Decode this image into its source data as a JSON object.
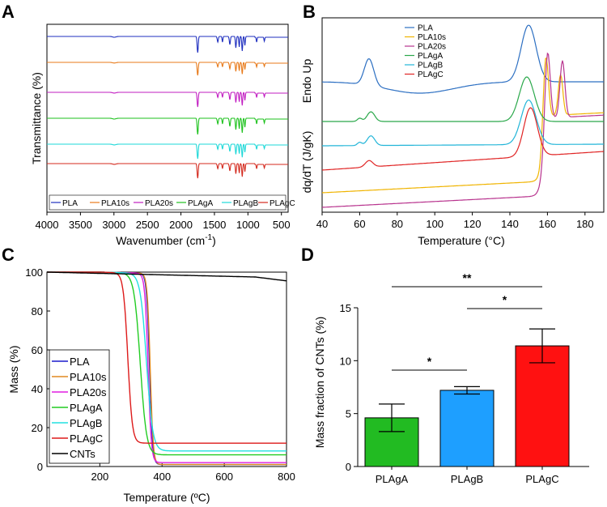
{
  "panels": {
    "A": {
      "letter": "A",
      "chart_data": {
        "type": "line",
        "title": "",
        "xlabel": "Wavenumber (cm-1)",
        "xlabel_main": "Wavenumber (cm",
        "xlabel_sup": "-1",
        "xlabel_close": ")",
        "ylabel": "Transmittance (%)",
        "xlim": [
          4000,
          400
        ],
        "xticks": [
          "4000",
          "3500",
          "3000",
          "2500",
          "2000",
          "1500",
          "1000",
          "500"
        ],
        "series": [
          {
            "name": "PLA",
            "color": "#1f2fbf"
          },
          {
            "name": "PLA10s",
            "color": "#e87a1a"
          },
          {
            "name": "PLA20s",
            "color": "#c21ec2"
          },
          {
            "name": "PLAgA",
            "color": "#1ec21e"
          },
          {
            "name": "PLAgB",
            "color": "#1ed8d8"
          },
          {
            "name": "PLAgC",
            "color": "#d42a1e"
          }
        ],
        "peaks_cm1": [
          2995,
          1750,
          1450,
          1380,
          1270,
          1180,
          1130,
          1085,
          1045,
          870,
          755
        ]
      }
    },
    "B": {
      "letter": "B",
      "chart_data": {
        "type": "line",
        "title": "",
        "xlabel": "Temperature (°C)",
        "ylabel": "dq/dT (J/gK)",
        "ylabel_extra": "Endo Up",
        "xlim": [
          40,
          190
        ],
        "xticks": [
          40,
          60,
          80,
          100,
          120,
          140,
          160,
          180
        ],
        "series": [
          {
            "name": "PLA",
            "color": "#2c6fc2",
            "peaks_C": [
              65,
              150
            ]
          },
          {
            "name": "PLA10s",
            "color": "#f0b400",
            "peaks_C": [
              159,
              167
            ]
          },
          {
            "name": "PLA20s",
            "color": "#b8338e",
            "peaks_C": [
              160,
              168
            ]
          },
          {
            "name": "PLAgA",
            "color": "#2aa84a",
            "peaks_C": [
              66,
              149
            ]
          },
          {
            "name": "PLAgB",
            "color": "#22b5d8",
            "peaks_C": [
              66,
              150
            ]
          },
          {
            "name": "PLAgC",
            "color": "#e02424",
            "peaks_C": [
              65,
              151
            ]
          }
        ]
      }
    },
    "C": {
      "letter": "C",
      "chart_data": {
        "type": "line",
        "title": "",
        "xlabel": "Temperature (ºC)",
        "ylabel": "Mass (%)",
        "xlim": [
          30,
          800
        ],
        "ylim": [
          0,
          100
        ],
        "xticks": [
          200,
          400,
          600,
          800
        ],
        "yticks": [
          0,
          20,
          40,
          60,
          80,
          100
        ],
        "series": [
          {
            "name": "PLA",
            "color": "#1a1acc",
            "onset": 330,
            "mid": 360,
            "width": 12,
            "residue": 1
          },
          {
            "name": "PLA10s",
            "color": "#e08a20",
            "onset": 330,
            "mid": 362,
            "width": 12,
            "residue": 1
          },
          {
            "name": "PLA20s",
            "color": "#e01ee0",
            "onset": 320,
            "mid": 355,
            "width": 13,
            "residue": 2
          },
          {
            "name": "PLAgA",
            "color": "#22cc22",
            "onset": 280,
            "mid": 330,
            "width": 25,
            "residue": 6
          },
          {
            "name": "PLAgB",
            "color": "#22e0e0",
            "onset": 260,
            "mid": 350,
            "width": 25,
            "residue": 8
          },
          {
            "name": "PLAgC",
            "color": "#dd1a1a",
            "onset": 250,
            "mid": 290,
            "width": 18,
            "residue": 12
          },
          {
            "name": "CNTs",
            "color": "#000000",
            "linear": [
              [
                30,
                100
              ],
              [
                700,
                97.5
              ],
              [
                800,
                95.5
              ]
            ]
          }
        ]
      }
    },
    "D": {
      "letter": "D",
      "chart_data": {
        "type": "bar",
        "title": "",
        "xlabel": "",
        "ylabel": "Mass fraction of CNTs (%)",
        "ylim": [
          0,
          15
        ],
        "yticks": [
          0,
          5,
          10,
          15
        ],
        "categories": [
          "PLAgA",
          "PLAgB",
          "PLAgC"
        ],
        "values": [
          4.6,
          7.2,
          11.4
        ],
        "errors": [
          1.3,
          0.35,
          1.6
        ],
        "colors": [
          "#22bb22",
          "#1e9fff",
          "#ff1111"
        ],
        "significance": [
          {
            "from": "PLAgA",
            "to": "PLAgB",
            "label": "*"
          },
          {
            "from": "PLAgB",
            "to": "PLAgC",
            "label": "*"
          },
          {
            "from": "PLAgA",
            "to": "PLAgC",
            "label": "**"
          }
        ]
      }
    }
  }
}
